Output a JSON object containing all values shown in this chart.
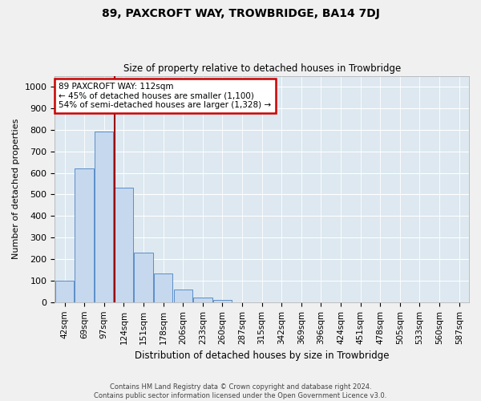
{
  "title": "89, PAXCROFT WAY, TROWBRIDGE, BA14 7DJ",
  "subtitle": "Size of property relative to detached houses in Trowbridge",
  "xlabel": "Distribution of detached houses by size in Trowbridge",
  "ylabel": "Number of detached properties",
  "bar_categories": [
    "42sqm",
    "69sqm",
    "97sqm",
    "124sqm",
    "151sqm",
    "178sqm",
    "206sqm",
    "233sqm",
    "260sqm",
    "287sqm",
    "315sqm",
    "342sqm",
    "369sqm",
    "396sqm",
    "424sqm",
    "451sqm",
    "478sqm",
    "505sqm",
    "533sqm",
    "560sqm",
    "587sqm"
  ],
  "bar_values": [
    100,
    620,
    790,
    530,
    230,
    135,
    60,
    20,
    10,
    0,
    0,
    0,
    0,
    0,
    0,
    0,
    0,
    0,
    0,
    0,
    0
  ],
  "bar_color": "#c5d8ee",
  "bar_edge_color": "#5b8ec9",
  "vline_x_idx": 2.55,
  "vline_color": "#990000",
  "ylim": [
    0,
    1050
  ],
  "yticks": [
    0,
    100,
    200,
    300,
    400,
    500,
    600,
    700,
    800,
    900,
    1000
  ],
  "annotation_text": "89 PAXCROFT WAY: 112sqm\n← 45% of detached houses are smaller (1,100)\n54% of semi-detached houses are larger (1,328) →",
  "annotation_box_color": "#ffffff",
  "annotation_box_edge_color": "#cc0000",
  "footnote": "Contains HM Land Registry data © Crown copyright and database right 2024.\nContains public sector information licensed under the Open Government Licence v3.0.",
  "fig_facecolor": "#f0f0f0",
  "ax_facecolor": "#dde8f0"
}
